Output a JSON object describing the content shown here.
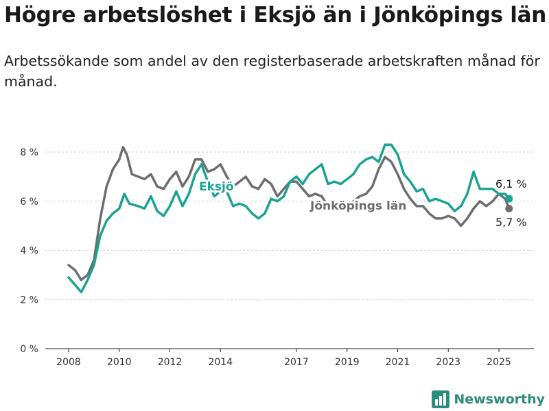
{
  "header": {
    "title": "Högre arbetslöshet i Eksjö än i Jönköpings län",
    "subtitle": "Arbetssökande som andel av den registerbaserade arbetskraften månad för månad."
  },
  "brand": {
    "name": "Newsworthy",
    "icon": "bar-chart-logo-icon",
    "color": "#2c8c7c"
  },
  "chart_data": {
    "type": "line",
    "ylim": [
      0,
      8.6
    ],
    "xlim": [
      2007.6,
      2026.3
    ],
    "y_ticks": [
      0,
      2,
      4,
      6,
      8
    ],
    "y_tick_labels": [
      "0 %",
      "2 %",
      "4 %",
      "6 %",
      "8 %"
    ],
    "x_ticks": [
      2008,
      2010,
      2012,
      2014,
      2017,
      2019,
      2021,
      2023,
      2025
    ],
    "x_tick_labels": [
      "2008",
      "2010",
      "2012",
      "2014",
      "2017",
      "2019",
      "2021",
      "2023",
      "2025"
    ],
    "grid": "horizontal dashed",
    "legend": "labels on lines",
    "series": [
      {
        "name": "Jönköpings län",
        "color": "#6d6d70",
        "end_label": "5,7 %",
        "points": [
          [
            2008.0,
            3.4
          ],
          [
            2008.25,
            3.2
          ],
          [
            2008.5,
            2.8
          ],
          [
            2008.75,
            3.0
          ],
          [
            2009.0,
            3.6
          ],
          [
            2009.25,
            5.3
          ],
          [
            2009.5,
            6.6
          ],
          [
            2009.75,
            7.3
          ],
          [
            2010.0,
            7.7
          ],
          [
            2010.15,
            8.2
          ],
          [
            2010.3,
            7.9
          ],
          [
            2010.5,
            7.1
          ],
          [
            2010.75,
            7.0
          ],
          [
            2011.0,
            6.9
          ],
          [
            2011.25,
            7.1
          ],
          [
            2011.5,
            6.6
          ],
          [
            2011.75,
            6.5
          ],
          [
            2012.0,
            6.9
          ],
          [
            2012.25,
            7.2
          ],
          [
            2012.5,
            6.6
          ],
          [
            2012.75,
            7.0
          ],
          [
            2013.0,
            7.7
          ],
          [
            2013.25,
            7.7
          ],
          [
            2013.5,
            7.2
          ],
          [
            2013.75,
            7.3
          ],
          [
            2014.0,
            7.5
          ],
          [
            2014.25,
            7.0
          ],
          [
            2014.5,
            6.6
          ],
          [
            2014.75,
            6.8
          ],
          [
            2015.0,
            7.0
          ],
          [
            2015.25,
            6.6
          ],
          [
            2015.5,
            6.5
          ],
          [
            2015.75,
            6.9
          ],
          [
            2016.0,
            6.7
          ],
          [
            2016.25,
            6.2
          ],
          [
            2016.5,
            6.5
          ],
          [
            2016.75,
            6.8
          ],
          [
            2017.0,
            6.8
          ],
          [
            2017.25,
            6.5
          ],
          [
            2017.5,
            6.2
          ],
          [
            2017.75,
            6.3
          ],
          [
            2018.0,
            6.2
          ],
          [
            2018.25,
            5.8
          ],
          [
            2018.5,
            5.7
          ],
          [
            2018.75,
            5.8
          ],
          [
            2019.0,
            5.8
          ],
          [
            2019.25,
            6.0
          ],
          [
            2019.5,
            6.2
          ],
          [
            2019.75,
            6.3
          ],
          [
            2020.0,
            6.6
          ],
          [
            2020.25,
            7.3
          ],
          [
            2020.5,
            7.8
          ],
          [
            2020.75,
            7.6
          ],
          [
            2021.0,
            7.1
          ],
          [
            2021.25,
            6.5
          ],
          [
            2021.5,
            6.1
          ],
          [
            2021.75,
            5.8
          ],
          [
            2022.0,
            5.8
          ],
          [
            2022.25,
            5.5
          ],
          [
            2022.5,
            5.3
          ],
          [
            2022.75,
            5.3
          ],
          [
            2023.0,
            5.4
          ],
          [
            2023.25,
            5.3
          ],
          [
            2023.5,
            5.0
          ],
          [
            2023.75,
            5.3
          ],
          [
            2024.0,
            5.7
          ],
          [
            2024.25,
            6.0
          ],
          [
            2024.5,
            5.8
          ],
          [
            2024.75,
            6.0
          ],
          [
            2025.0,
            6.3
          ],
          [
            2025.25,
            6.1
          ],
          [
            2025.4,
            5.7
          ]
        ]
      },
      {
        "name": "Eksjö",
        "color": "#1aa394",
        "end_label": "6,1 %",
        "points": [
          [
            2008.0,
            2.9
          ],
          [
            2008.25,
            2.6
          ],
          [
            2008.5,
            2.3
          ],
          [
            2008.75,
            2.8
          ],
          [
            2009.0,
            3.4
          ],
          [
            2009.25,
            4.6
          ],
          [
            2009.5,
            5.2
          ],
          [
            2009.75,
            5.5
          ],
          [
            2010.0,
            5.7
          ],
          [
            2010.2,
            6.3
          ],
          [
            2010.4,
            5.9
          ],
          [
            2010.75,
            5.8
          ],
          [
            2011.0,
            5.7
          ],
          [
            2011.25,
            6.2
          ],
          [
            2011.5,
            5.6
          ],
          [
            2011.75,
            5.4
          ],
          [
            2012.0,
            5.8
          ],
          [
            2012.25,
            6.4
          ],
          [
            2012.5,
            5.8
          ],
          [
            2012.75,
            6.3
          ],
          [
            2013.0,
            7.1
          ],
          [
            2013.25,
            7.5
          ],
          [
            2013.5,
            6.8
          ],
          [
            2013.75,
            6.2
          ],
          [
            2014.0,
            6.4
          ],
          [
            2014.25,
            6.4
          ],
          [
            2014.5,
            5.8
          ],
          [
            2014.75,
            5.9
          ],
          [
            2015.0,
            5.8
          ],
          [
            2015.25,
            5.5
          ],
          [
            2015.5,
            5.3
          ],
          [
            2015.75,
            5.5
          ],
          [
            2016.0,
            6.1
          ],
          [
            2016.25,
            6.0
          ],
          [
            2016.5,
            6.2
          ],
          [
            2016.75,
            6.8
          ],
          [
            2017.0,
            7.0
          ],
          [
            2017.25,
            6.7
          ],
          [
            2017.5,
            7.1
          ],
          [
            2017.75,
            7.3
          ],
          [
            2018.0,
            7.5
          ],
          [
            2018.25,
            6.7
          ],
          [
            2018.5,
            6.8
          ],
          [
            2018.75,
            6.7
          ],
          [
            2019.0,
            6.9
          ],
          [
            2019.25,
            7.1
          ],
          [
            2019.5,
            7.5
          ],
          [
            2019.75,
            7.7
          ],
          [
            2020.0,
            7.8
          ],
          [
            2020.25,
            7.6
          ],
          [
            2020.5,
            8.3
          ],
          [
            2020.75,
            8.3
          ],
          [
            2021.0,
            7.9
          ],
          [
            2021.25,
            7.1
          ],
          [
            2021.5,
            6.8
          ],
          [
            2021.75,
            6.4
          ],
          [
            2022.0,
            6.5
          ],
          [
            2022.25,
            6.0
          ],
          [
            2022.5,
            6.1
          ],
          [
            2022.75,
            6.0
          ],
          [
            2023.0,
            5.9
          ],
          [
            2023.25,
            5.6
          ],
          [
            2023.5,
            5.8
          ],
          [
            2023.75,
            6.3
          ],
          [
            2024.0,
            7.2
          ],
          [
            2024.25,
            6.5
          ],
          [
            2024.5,
            6.5
          ],
          [
            2024.75,
            6.5
          ],
          [
            2025.0,
            6.3
          ],
          [
            2025.25,
            6.3
          ],
          [
            2025.4,
            6.1
          ]
        ]
      }
    ]
  }
}
